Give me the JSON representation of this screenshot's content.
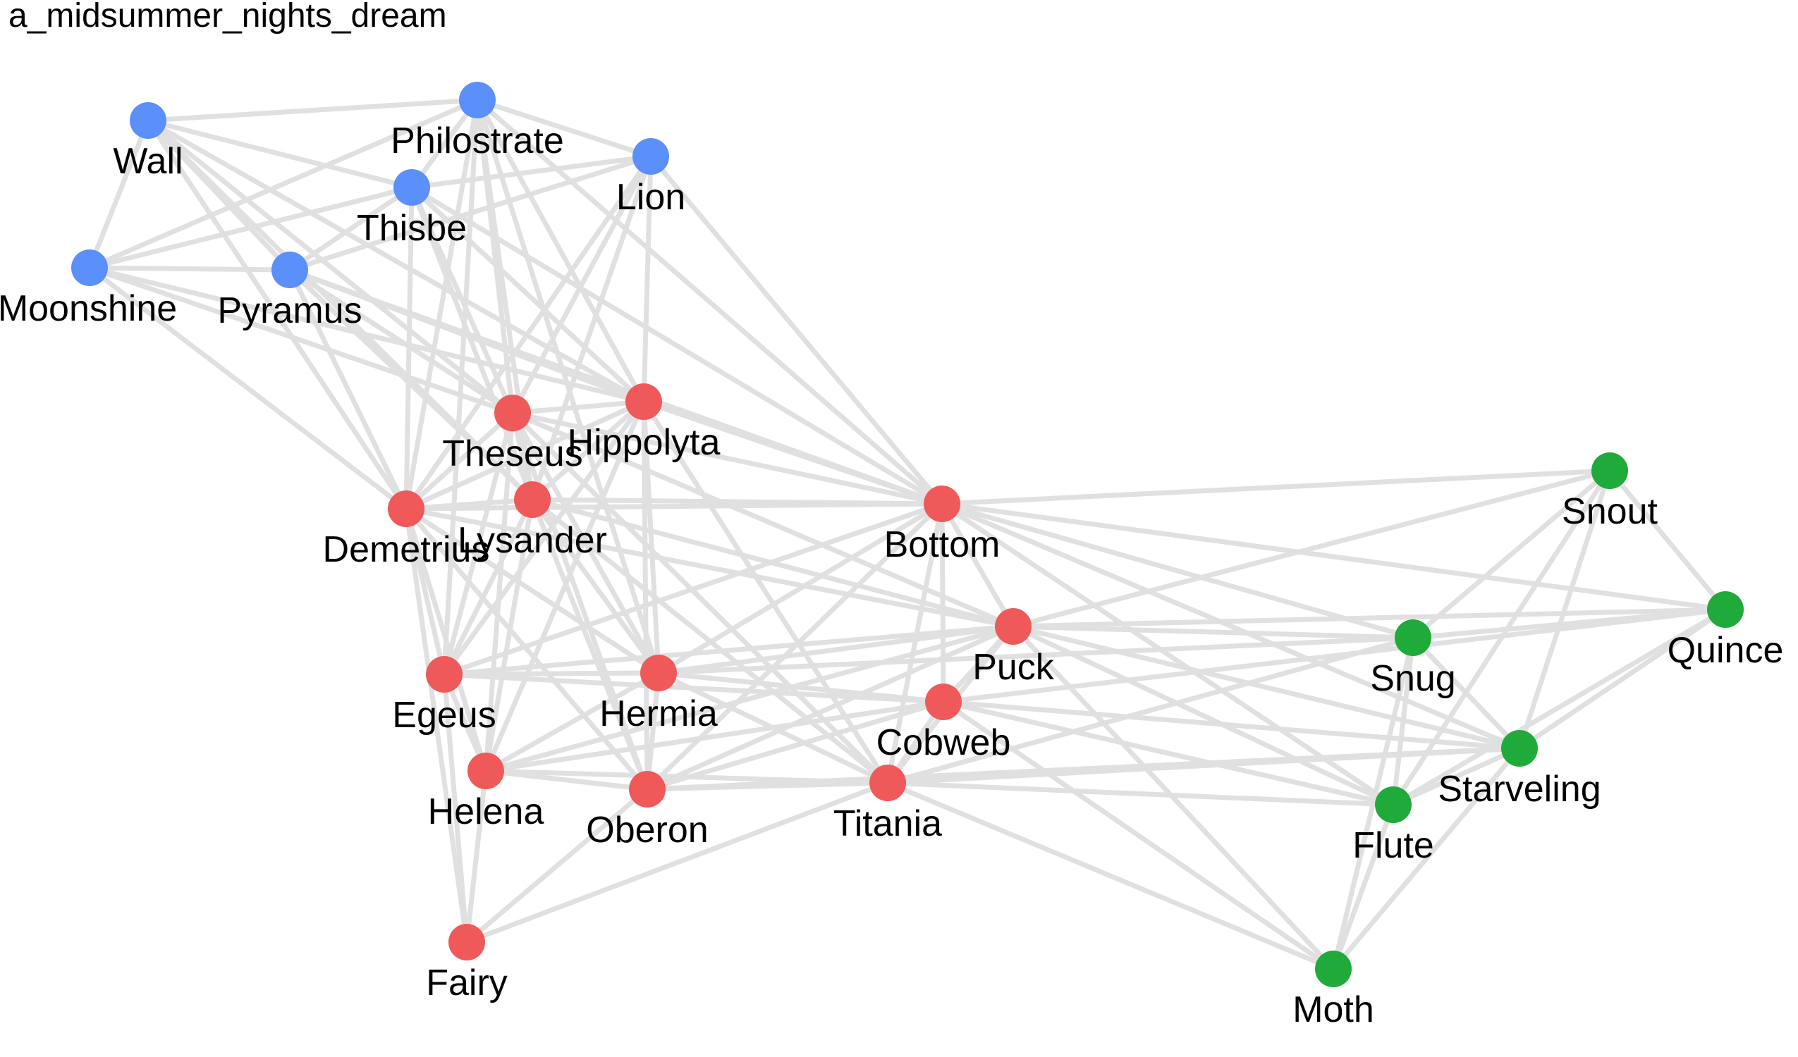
{
  "title": "a_midsummer_nights_dream",
  "colors": {
    "edge": "#e0e0e0",
    "group_blue": "#5b8ff9",
    "group_red": "#f0595a",
    "group_green": "#1faa3a",
    "background": "#ffffff"
  },
  "nodes": [
    {
      "id": "Wall",
      "group": "blue"
    },
    {
      "id": "Philostrate",
      "group": "blue"
    },
    {
      "id": "Lion",
      "group": "blue"
    },
    {
      "id": "Thisbe",
      "group": "blue"
    },
    {
      "id": "Moonshine",
      "group": "blue"
    },
    {
      "id": "Pyramus",
      "group": "blue"
    },
    {
      "id": "Theseus",
      "group": "red"
    },
    {
      "id": "Hippolyta",
      "group": "red"
    },
    {
      "id": "Demetrius",
      "group": "red"
    },
    {
      "id": "Lysander",
      "group": "red"
    },
    {
      "id": "Bottom",
      "group": "red"
    },
    {
      "id": "Puck",
      "group": "red"
    },
    {
      "id": "Egeus",
      "group": "red"
    },
    {
      "id": "Hermia",
      "group": "red"
    },
    {
      "id": "Cobweb",
      "group": "red"
    },
    {
      "id": "Helena",
      "group": "red"
    },
    {
      "id": "Oberon",
      "group": "red"
    },
    {
      "id": "Titania",
      "group": "red"
    },
    {
      "id": "Fairy",
      "group": "red"
    },
    {
      "id": "Snout",
      "group": "green"
    },
    {
      "id": "Quince",
      "group": "green"
    },
    {
      "id": "Snug",
      "group": "green"
    },
    {
      "id": "Starveling",
      "group": "green"
    },
    {
      "id": "Flute",
      "group": "green"
    },
    {
      "id": "Moth",
      "group": "green"
    }
  ],
  "edges": [
    [
      "Wall",
      "Philostrate"
    ],
    [
      "Wall",
      "Thisbe"
    ],
    [
      "Wall",
      "Pyramus"
    ],
    [
      "Wall",
      "Theseus"
    ],
    [
      "Wall",
      "Hippolyta"
    ],
    [
      "Wall",
      "Demetrius"
    ],
    [
      "Wall",
      "Lysander"
    ],
    [
      "Philostrate",
      "Thisbe"
    ],
    [
      "Philostrate",
      "Lion"
    ],
    [
      "Philostrate",
      "Moonshine"
    ],
    [
      "Philostrate",
      "Theseus"
    ],
    [
      "Philostrate",
      "Hippolyta"
    ],
    [
      "Philostrate",
      "Demetrius"
    ],
    [
      "Philostrate",
      "Lysander"
    ],
    [
      "Philostrate",
      "Bottom"
    ],
    [
      "Philostrate",
      "Egeus"
    ],
    [
      "Philostrate",
      "Hermia"
    ],
    [
      "Lion",
      "Thisbe"
    ],
    [
      "Lion",
      "Pyramus"
    ],
    [
      "Lion",
      "Theseus"
    ],
    [
      "Lion",
      "Demetrius"
    ],
    [
      "Lion",
      "Lysander"
    ],
    [
      "Lion",
      "Hippolyta"
    ],
    [
      "Lion",
      "Bottom"
    ],
    [
      "Thisbe",
      "Moonshine"
    ],
    [
      "Thisbe",
      "Pyramus"
    ],
    [
      "Thisbe",
      "Theseus"
    ],
    [
      "Thisbe",
      "Hippolyta"
    ],
    [
      "Thisbe",
      "Demetrius"
    ],
    [
      "Thisbe",
      "Lysander"
    ],
    [
      "Thisbe",
      "Bottom"
    ],
    [
      "Moonshine",
      "Wall"
    ],
    [
      "Moonshine",
      "Pyramus"
    ],
    [
      "Moonshine",
      "Theseus"
    ],
    [
      "Moonshine",
      "Demetrius"
    ],
    [
      "Moonshine",
      "Hippolyta"
    ],
    [
      "Pyramus",
      "Theseus"
    ],
    [
      "Pyramus",
      "Hippolyta"
    ],
    [
      "Pyramus",
      "Demetrius"
    ],
    [
      "Pyramus",
      "Lysander"
    ],
    [
      "Pyramus",
      "Bottom"
    ],
    [
      "Theseus",
      "Hippolyta"
    ],
    [
      "Theseus",
      "Demetrius"
    ],
    [
      "Theseus",
      "Lysander"
    ],
    [
      "Theseus",
      "Bottom"
    ],
    [
      "Theseus",
      "Egeus"
    ],
    [
      "Theseus",
      "Hermia"
    ],
    [
      "Theseus",
      "Helena"
    ],
    [
      "Theseus",
      "Oberon"
    ],
    [
      "Theseus",
      "Titania"
    ],
    [
      "Theseus",
      "Puck"
    ],
    [
      "Hippolyta",
      "Demetrius"
    ],
    [
      "Hippolyta",
      "Lysander"
    ],
    [
      "Hippolyta",
      "Bottom"
    ],
    [
      "Hippolyta",
      "Egeus"
    ],
    [
      "Hippolyta",
      "Hermia"
    ],
    [
      "Hippolyta",
      "Helena"
    ],
    [
      "Hippolyta",
      "Oberon"
    ],
    [
      "Hippolyta",
      "Titania"
    ],
    [
      "Demetrius",
      "Lysander"
    ],
    [
      "Demetrius",
      "Bottom"
    ],
    [
      "Demetrius",
      "Egeus"
    ],
    [
      "Demetrius",
      "Hermia"
    ],
    [
      "Demetrius",
      "Helena"
    ],
    [
      "Demetrius",
      "Fairy"
    ],
    [
      "Demetrius",
      "Puck"
    ],
    [
      "Demetrius",
      "Oberon"
    ],
    [
      "Lysander",
      "Bottom"
    ],
    [
      "Lysander",
      "Egeus"
    ],
    [
      "Lysander",
      "Hermia"
    ],
    [
      "Lysander",
      "Helena"
    ],
    [
      "Lysander",
      "Puck"
    ],
    [
      "Lysander",
      "Oberon"
    ],
    [
      "Lysander",
      "Titania"
    ],
    [
      "Bottom",
      "Puck"
    ],
    [
      "Bottom",
      "Hermia"
    ],
    [
      "Bottom",
      "Egeus"
    ],
    [
      "Bottom",
      "Cobweb"
    ],
    [
      "Bottom",
      "Titania"
    ],
    [
      "Bottom",
      "Snout"
    ],
    [
      "Bottom",
      "Quince"
    ],
    [
      "Bottom",
      "Snug"
    ],
    [
      "Bottom",
      "Starveling"
    ],
    [
      "Bottom",
      "Flute"
    ],
    [
      "Bottom",
      "Oberon"
    ],
    [
      "Puck",
      "Egeus"
    ],
    [
      "Puck",
      "Hermia"
    ],
    [
      "Puck",
      "Helena"
    ],
    [
      "Puck",
      "Oberon"
    ],
    [
      "Puck",
      "Titania"
    ],
    [
      "Puck",
      "Cobweb"
    ],
    [
      "Puck",
      "Snout"
    ],
    [
      "Puck",
      "Snug"
    ],
    [
      "Puck",
      "Quince"
    ],
    [
      "Puck",
      "Starveling"
    ],
    [
      "Puck",
      "Flute"
    ],
    [
      "Puck",
      "Moth"
    ],
    [
      "Egeus",
      "Hermia"
    ],
    [
      "Egeus",
      "Helena"
    ],
    [
      "Egeus",
      "Cobweb"
    ],
    [
      "Egeus",
      "Fairy"
    ],
    [
      "Hermia",
      "Helena"
    ],
    [
      "Hermia",
      "Oberon"
    ],
    [
      "Hermia",
      "Cobweb"
    ],
    [
      "Hermia",
      "Titania"
    ],
    [
      "Hermia",
      "Snug"
    ],
    [
      "Cobweb",
      "Helena"
    ],
    [
      "Cobweb",
      "Oberon"
    ],
    [
      "Cobweb",
      "Titania"
    ],
    [
      "Cobweb",
      "Starveling"
    ],
    [
      "Cobweb",
      "Flute"
    ],
    [
      "Cobweb",
      "Quince"
    ],
    [
      "Cobweb",
      "Moth"
    ],
    [
      "Helena",
      "Oberon"
    ],
    [
      "Helena",
      "Titania"
    ],
    [
      "Helena",
      "Fairy"
    ],
    [
      "Oberon",
      "Titania"
    ],
    [
      "Oberon",
      "Fairy"
    ],
    [
      "Oberon",
      "Starveling"
    ],
    [
      "Titania",
      "Fairy"
    ],
    [
      "Titania",
      "Snug"
    ],
    [
      "Titania",
      "Starveling"
    ],
    [
      "Titania",
      "Flute"
    ],
    [
      "Titania",
      "Moth"
    ],
    [
      "Snout",
      "Quince"
    ],
    [
      "Snout",
      "Snug"
    ],
    [
      "Snout",
      "Starveling"
    ],
    [
      "Snout",
      "Flute"
    ],
    [
      "Quince",
      "Snug"
    ],
    [
      "Quince",
      "Starveling"
    ],
    [
      "Quince",
      "Flute"
    ],
    [
      "Snug",
      "Starveling"
    ],
    [
      "Snug",
      "Flute"
    ],
    [
      "Snug",
      "Moth"
    ],
    [
      "Starveling",
      "Flute"
    ],
    [
      "Starveling",
      "Moth"
    ],
    [
      "Flute",
      "Moth"
    ]
  ]
}
